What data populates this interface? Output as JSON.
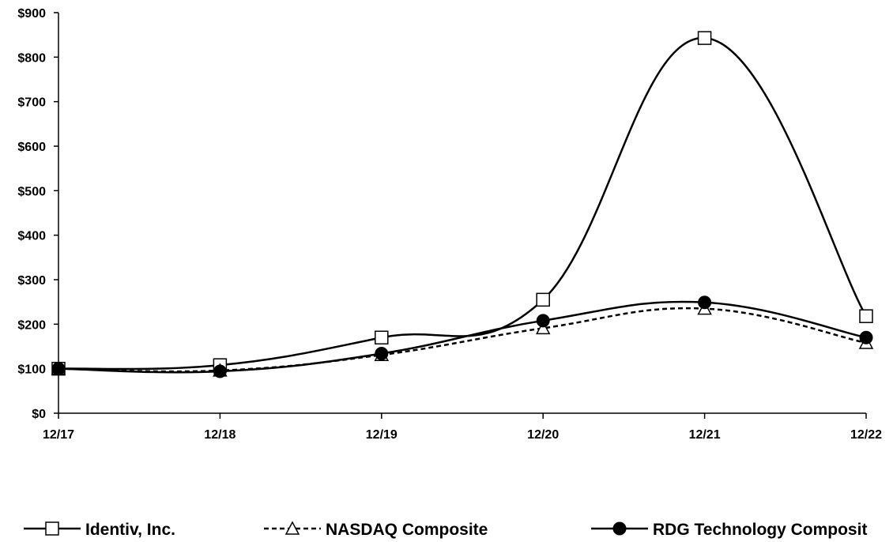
{
  "chart_data": {
    "type": "line",
    "title": "",
    "xlabel": "",
    "ylabel": "",
    "categories": [
      "12/17",
      "12/18",
      "12/19",
      "12/20",
      "12/21",
      "12/22"
    ],
    "y_ticks": [
      "$0",
      "$100",
      "$200",
      "$300",
      "$400",
      "$500",
      "$600",
      "$700",
      "$800",
      "$900"
    ],
    "ylim": [
      0,
      900
    ],
    "grid": false,
    "legend_position": "bottom",
    "series": [
      {
        "name": "Identiv, Inc.",
        "values": [
          100,
          108,
          170,
          255,
          843,
          218
        ],
        "marker": "square-open",
        "line": "solid",
        "color": "#000000"
      },
      {
        "name": "NASDAQ Composite",
        "values": [
          100,
          96,
          131,
          191,
          235,
          158
        ],
        "marker": "triangle-open",
        "line": "dashed",
        "color": "#000000"
      },
      {
        "name": "RDG Technology Composit",
        "values": [
          100,
          94,
          134,
          208,
          249,
          170
        ],
        "marker": "circle-filled",
        "line": "solid",
        "color": "#000000"
      }
    ]
  }
}
